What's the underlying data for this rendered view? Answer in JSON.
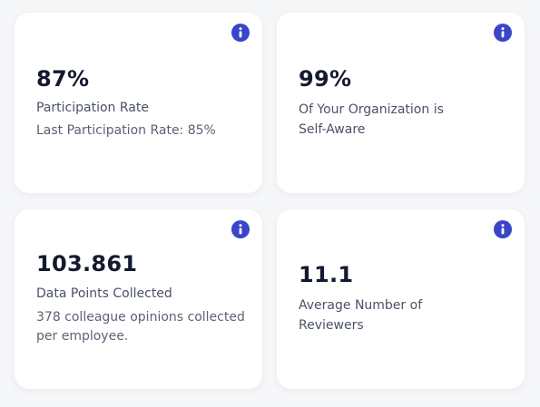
{
  "colors": {
    "accent": "#3b45c9",
    "card_background": "#ffffff",
    "page_background": "#f6f7f9",
    "value_text": "#141a2e",
    "secondary_text": "#5a6273"
  },
  "cards": [
    {
      "value": "87%",
      "label": "Participation Rate",
      "description": "Last Participation Rate: 85%",
      "icon": "info-icon"
    },
    {
      "value": "99%",
      "label_line1": "Of Your Organization is",
      "label_line2": "Self-Aware",
      "icon": "info-icon"
    },
    {
      "value": "103.861",
      "label": "Data Points Collected",
      "description_line1": "378 colleague opinions collected",
      "description_line2": "per employee.",
      "icon": "info-icon"
    },
    {
      "value": "11.1",
      "label_line1": "Average Number of",
      "label_line2": "Reviewers",
      "icon": "info-icon"
    }
  ]
}
